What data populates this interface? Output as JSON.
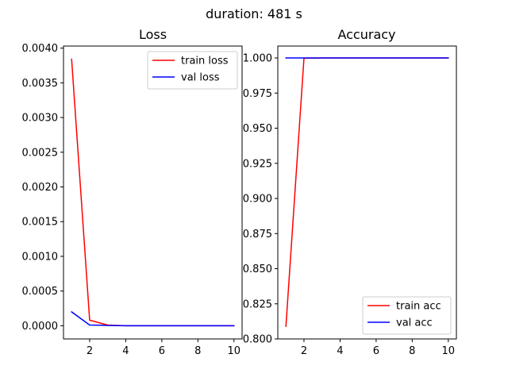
{
  "figure": {
    "suptitle": "duration: 481 s"
  },
  "chart_data": [
    {
      "type": "line",
      "title": "Loss",
      "xlabel": "",
      "ylabel": "",
      "xlim": [
        0.55,
        10.45
      ],
      "ylim": [
        -0.00019,
        0.00403
      ],
      "xticks": [
        2,
        4,
        6,
        8,
        10
      ],
      "xtick_labels": [
        "2",
        "4",
        "6",
        "8",
        "10"
      ],
      "yticks": [
        0,
        0.0005,
        0.001,
        0.0015,
        0.002,
        0.0025,
        0.003,
        0.0035,
        0.004
      ],
      "ytick_labels": [
        "0.0000",
        "0.0005",
        "0.0010",
        "0.0015",
        "0.0020",
        "0.0025",
        "0.0030",
        "0.0035",
        "0.0040"
      ],
      "grid": false,
      "legend_position": "top-right",
      "x": [
        1,
        2,
        3,
        4,
        5,
        6,
        7,
        8,
        9,
        10
      ],
      "series": [
        {
          "name": "train loss",
          "color": "#ff0000",
          "values": [
            0.00384,
            8e-05,
            1e-05,
            0.0,
            0.0,
            0.0,
            0.0,
            0.0,
            0.0,
            0.0
          ]
        },
        {
          "name": "val loss",
          "color": "#0000ff",
          "values": [
            0.0002,
            1e-05,
            5e-06,
            0.0,
            0.0,
            0.0,
            0.0,
            0.0,
            0.0,
            0.0
          ]
        }
      ]
    },
    {
      "type": "line",
      "title": "Accuracy",
      "xlabel": "",
      "ylabel": "",
      "xlim": [
        0.55,
        10.45
      ],
      "ylim": [
        0.8,
        1.0085
      ],
      "xticks": [
        2,
        4,
        6,
        8,
        10
      ],
      "xtick_labels": [
        "2",
        "4",
        "6",
        "8",
        "10"
      ],
      "yticks": [
        0.8,
        0.825,
        0.85,
        0.875,
        0.9,
        0.925,
        0.95,
        0.975,
        1.0
      ],
      "ytick_labels": [
        "0.800",
        "0.825",
        "0.850",
        "0.875",
        "0.900",
        "0.925",
        "0.950",
        "0.975",
        "1.000"
      ],
      "grid": false,
      "legend_position": "bottom-right",
      "x": [
        1,
        2,
        3,
        4,
        5,
        6,
        7,
        8,
        9,
        10
      ],
      "series": [
        {
          "name": "train acc",
          "color": "#ff0000",
          "values": [
            0.809,
            0.9998,
            1.0,
            1.0,
            1.0,
            1.0,
            1.0,
            1.0,
            1.0,
            1.0
          ]
        },
        {
          "name": "val acc",
          "color": "#0000ff",
          "values": [
            1.0,
            1.0,
            1.0,
            1.0,
            1.0,
            1.0,
            1.0,
            1.0,
            1.0,
            1.0
          ]
        }
      ]
    }
  ]
}
